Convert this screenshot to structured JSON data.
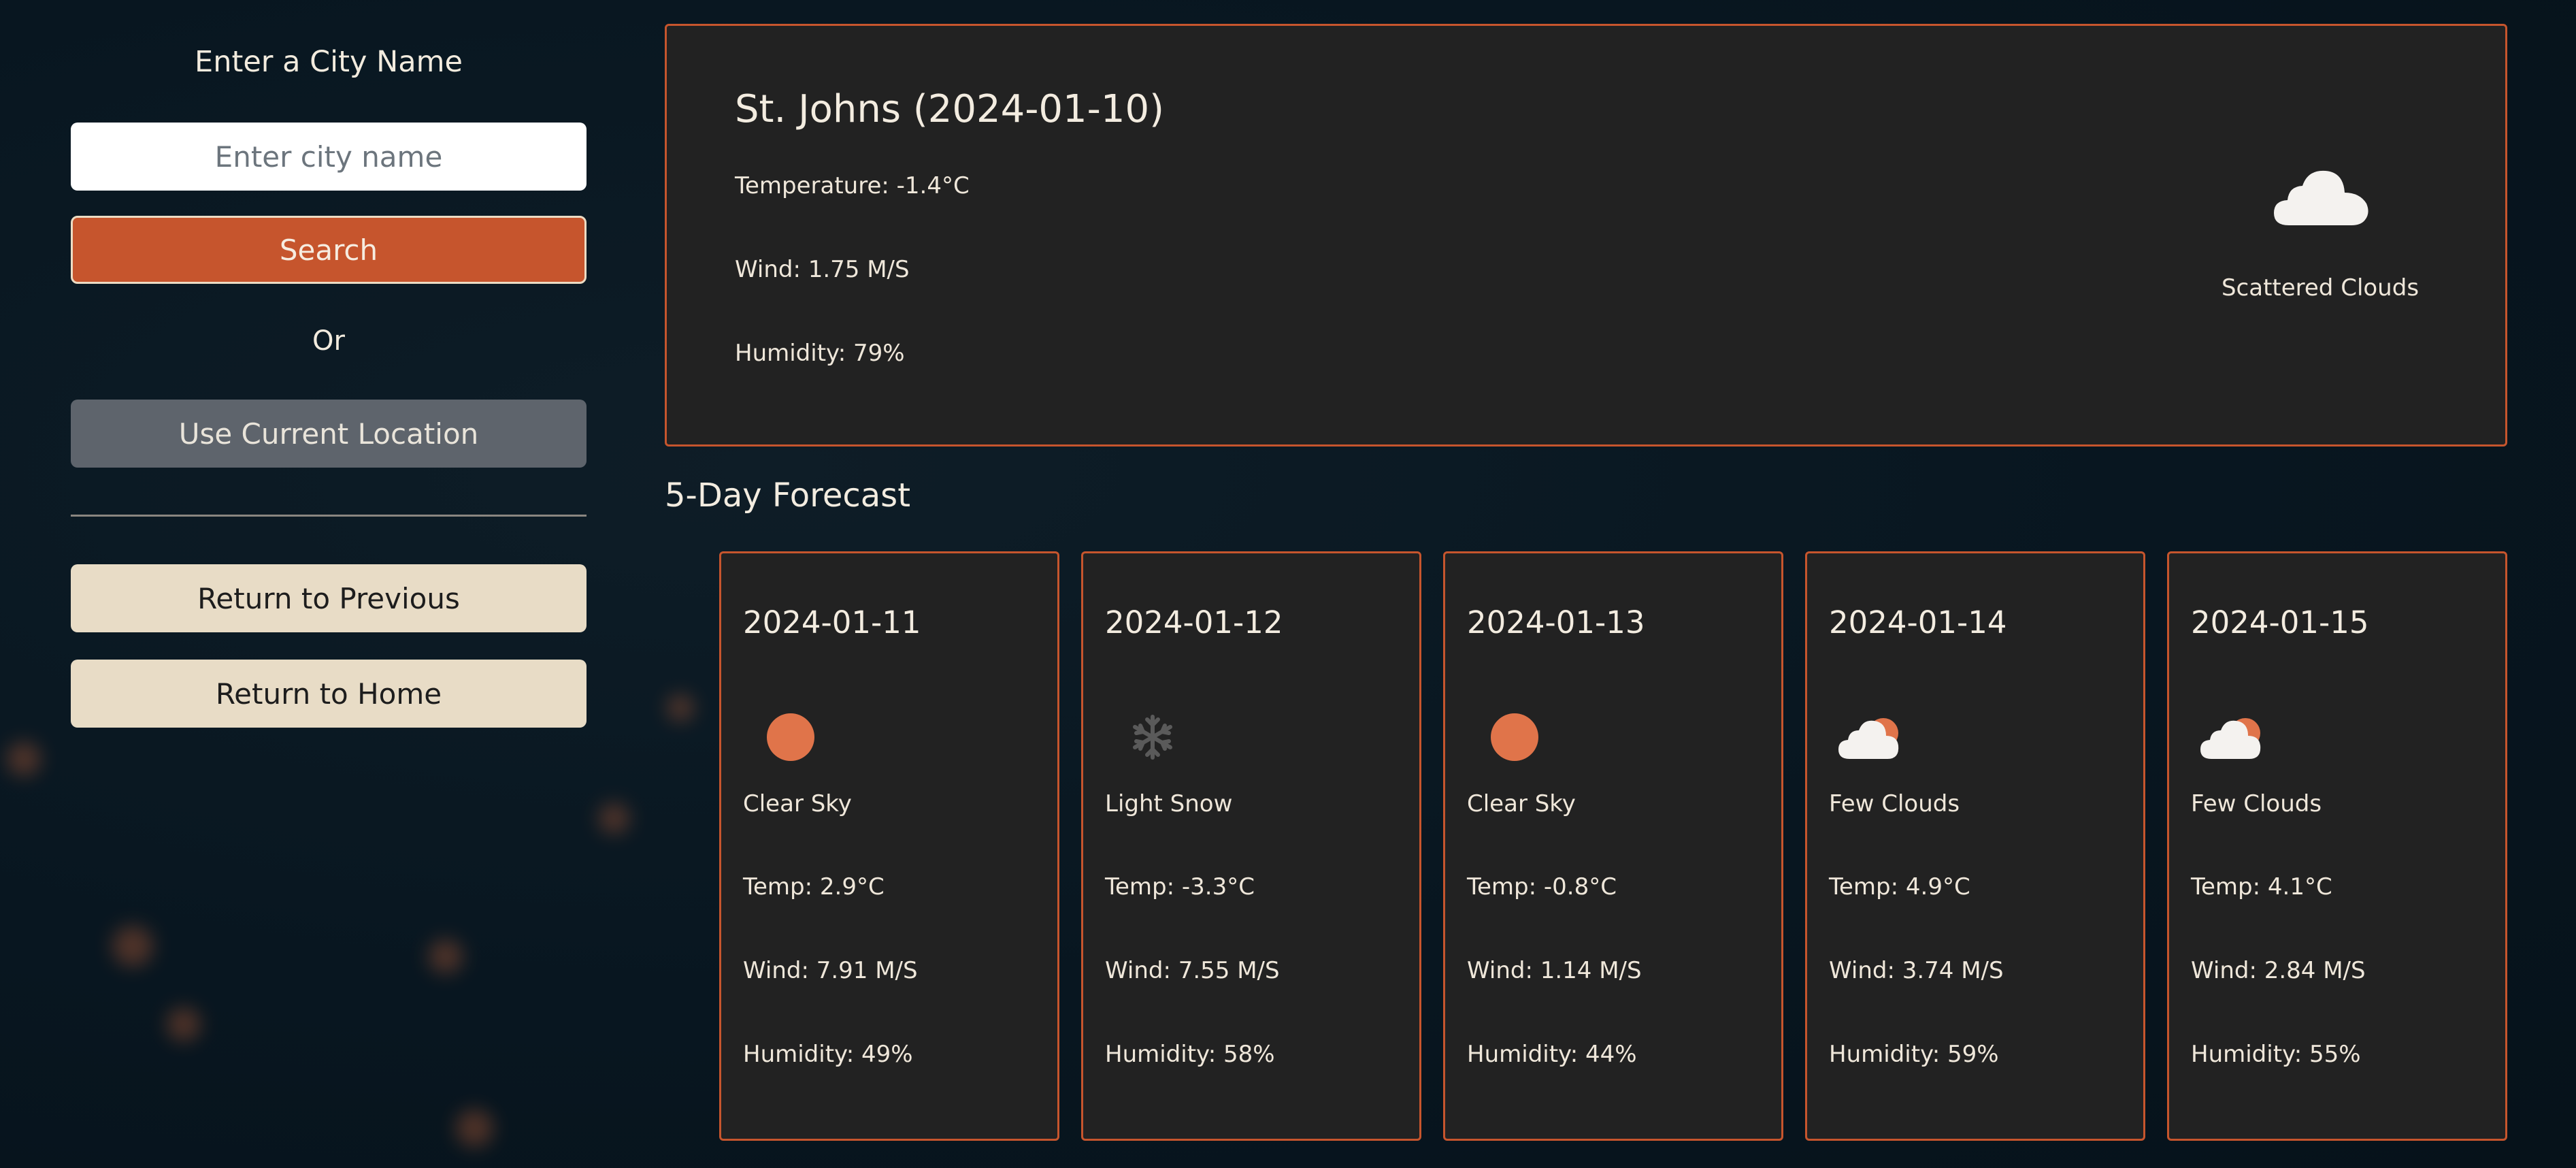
{
  "sidebar": {
    "title": "Enter a City Name",
    "search_placeholder": "Enter city name",
    "search_label": "Search",
    "or_label": "Or",
    "location_label": "Use Current Location",
    "previous_label": "Return to Previous",
    "home_label": "Return to Home"
  },
  "current": {
    "title": "St. Johns (2024-01-10)",
    "temperature": "Temperature: -1.4°C",
    "wind": "Wind: 1.75 M/S",
    "humidity": "Humidity: 79%",
    "icon": "cloud-icon",
    "description": "Scattered Clouds"
  },
  "forecast": {
    "heading": "5-Day Forecast",
    "days": [
      {
        "date": "2024-01-11",
        "icon": "sun-icon",
        "description": "Clear Sky",
        "temp": "Temp: 2.9°C",
        "wind": "Wind: 7.91 M/S",
        "humidity": "Humidity: 49%"
      },
      {
        "date": "2024-01-12",
        "icon": "snowflake-icon",
        "description": "Light Snow",
        "temp": "Temp: -3.3°C",
        "wind": "Wind: 7.55 M/S",
        "humidity": "Humidity: 58%"
      },
      {
        "date": "2024-01-13",
        "icon": "sun-icon",
        "description": "Clear Sky",
        "temp": "Temp: -0.8°C",
        "wind": "Wind: 1.14 M/S",
        "humidity": "Humidity: 44%"
      },
      {
        "date": "2024-01-14",
        "icon": "sun-cloud-icon",
        "description": "Few Clouds",
        "temp": "Temp: 4.9°C",
        "wind": "Wind: 3.74 M/S",
        "humidity": "Humidity: 59%"
      },
      {
        "date": "2024-01-15",
        "icon": "sun-cloud-icon",
        "description": "Few Clouds",
        "temp": "Temp: 4.1°C",
        "wind": "Wind: 2.84 M/S",
        "humidity": "Humidity: 55%"
      }
    ]
  },
  "colors": {
    "accent": "#c6552d",
    "card_bg": "#222222",
    "page_bg": "#081620",
    "button_light": "#e8dcc6",
    "button_gray": "#5e646c",
    "sun": "#e0744a"
  }
}
